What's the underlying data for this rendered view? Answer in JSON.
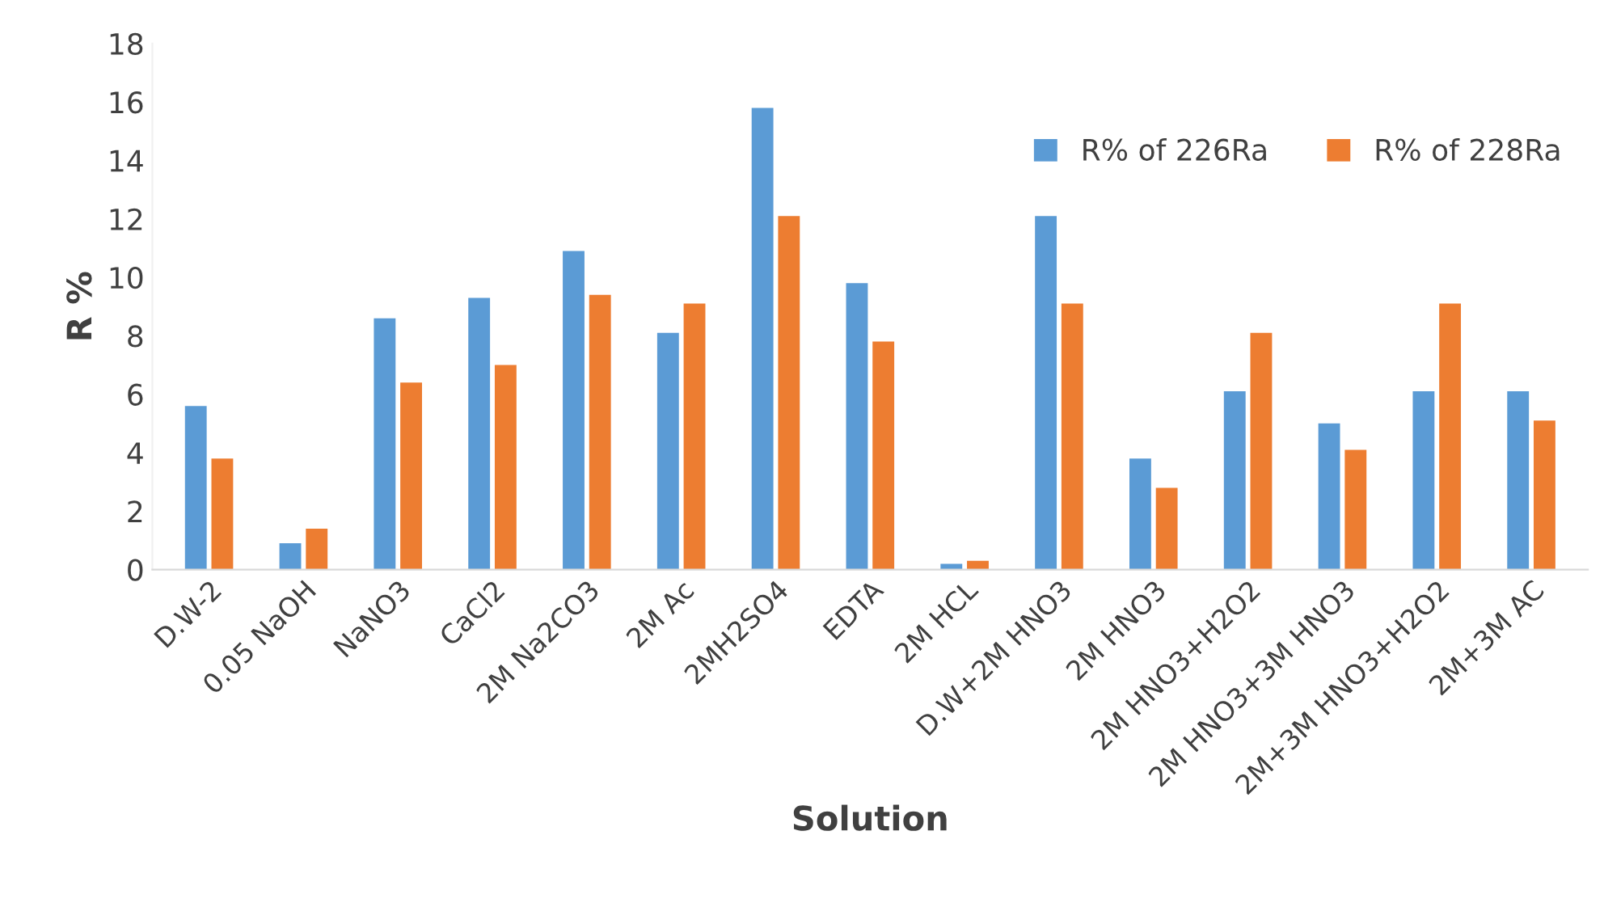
{
  "chart_data": {
    "type": "bar",
    "xlabel": "Solution",
    "ylabel": "R %",
    "categories": [
      "D.W-2",
      "0.05 NaOH",
      "NaNO3",
      "CaCl2",
      "2M Na2CO3",
      "2M Ac",
      "2MH2SO4",
      "EDTA",
      "2M HCL",
      "D.W+2M HNO3",
      "2M HNO3",
      "2M HNO3+H2O2",
      "2M HNO3+3M HNO3",
      "2M+3M HNO3+H2O2",
      "2M+3M AC"
    ],
    "series": [
      {
        "name": "R% of 226Ra",
        "color": "#5b9bd5",
        "values": [
          5.6,
          0.9,
          8.6,
          9.3,
          10.9,
          8.1,
          15.8,
          9.8,
          0.2,
          12.1,
          3.8,
          6.1,
          5.0,
          6.1,
          6.1
        ]
      },
      {
        "name": "R% of 228Ra",
        "color": "#ed7d31",
        "values": [
          3.8,
          1.4,
          6.4,
          7.0,
          9.4,
          9.1,
          12.1,
          7.8,
          0.3,
          9.1,
          2.8,
          8.1,
          4.1,
          9.1,
          5.1
        ]
      }
    ],
    "ylim": [
      0,
      18
    ],
    "yticks": [
      0,
      2,
      4,
      6,
      8,
      10,
      12,
      14,
      16,
      18
    ],
    "grid": false,
    "legend": "top right"
  }
}
